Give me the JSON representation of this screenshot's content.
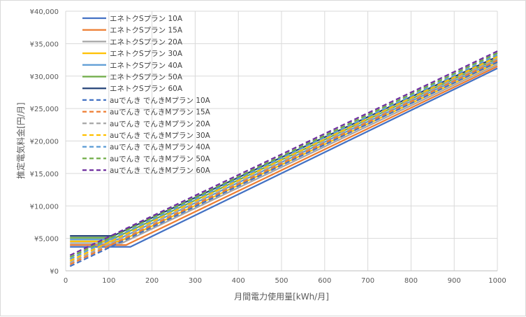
{
  "chart_data": {
    "type": "line",
    "xlabel": "月間電力使用量[kWh/月]",
    "ylabel": "推定電気料金[円/月]",
    "xlim": [
      0,
      1000
    ],
    "ylim": [
      0,
      40000
    ],
    "x_ticks": [
      "0",
      "100",
      "200",
      "300",
      "400",
      "500",
      "600",
      "700",
      "800",
      "900",
      "1000"
    ],
    "y_ticks": [
      "¥0",
      "¥5,000",
      "¥10,000",
      "¥15,000",
      "¥20,000",
      "¥25,000",
      "¥30,000",
      "¥35,000",
      "¥40,000"
    ],
    "grid": true,
    "legend_position": "top-left",
    "series": [
      {
        "name": "エネトクSプラン 10A",
        "color": "#4472c4",
        "dash": false,
        "points": [
          [
            10,
            3700
          ],
          [
            150,
            3700
          ],
          [
            1000,
            31200
          ]
        ]
      },
      {
        "name": "エネトクSプラン 15A",
        "color": "#ed7d31",
        "dash": false,
        "points": [
          [
            10,
            3980
          ],
          [
            140,
            3980
          ],
          [
            1000,
            31500
          ]
        ]
      },
      {
        "name": "エネトクSプラン 20A",
        "color": "#a5a5a5",
        "dash": false,
        "points": [
          [
            10,
            4260
          ],
          [
            130,
            4260
          ],
          [
            1000,
            31800
          ]
        ]
      },
      {
        "name": "エネトクSプラン 30A",
        "color": "#ffc000",
        "dash": false,
        "points": [
          [
            10,
            4540
          ],
          [
            125,
            4540
          ],
          [
            1000,
            32100
          ]
        ]
      },
      {
        "name": "エネトクSプラン 40A",
        "color": "#5b9bd5",
        "dash": false,
        "points": [
          [
            10,
            4820
          ],
          [
            120,
            4820
          ],
          [
            1000,
            32400
          ]
        ]
      },
      {
        "name": "エネトクSプラン 50A",
        "color": "#70ad47",
        "dash": false,
        "points": [
          [
            10,
            5100
          ],
          [
            115,
            5100
          ],
          [
            1000,
            32700
          ]
        ]
      },
      {
        "name": "エネトクSプラン 60A",
        "color": "#264478",
        "dash": false,
        "points": [
          [
            10,
            5380
          ],
          [
            110,
            5380
          ],
          [
            1000,
            33000
          ]
        ]
      },
      {
        "name": "auでんき でんきMプラン 10A",
        "color": "#4472c4",
        "dash": true,
        "points": [
          [
            10,
            700
          ],
          [
            1000,
            32150
          ]
        ]
      },
      {
        "name": "auでんき でんきMプラン 15A",
        "color": "#ed7d31",
        "dash": true,
        "points": [
          [
            10,
            980
          ],
          [
            1000,
            32430
          ]
        ]
      },
      {
        "name": "auでんき でんきMプラン 20A",
        "color": "#a5a5a5",
        "dash": true,
        "points": [
          [
            10,
            1260
          ],
          [
            1000,
            32710
          ]
        ]
      },
      {
        "name": "auでんき でんきMプラン 30A",
        "color": "#ffc000",
        "dash": true,
        "points": [
          [
            10,
            1540
          ],
          [
            1000,
            32990
          ]
        ]
      },
      {
        "name": "auでんき でんきMプラン 40A",
        "color": "#5b9bd5",
        "dash": true,
        "points": [
          [
            10,
            1820
          ],
          [
            1000,
            33270
          ]
        ]
      },
      {
        "name": "auでんき でんきMプラン 50A",
        "color": "#70ad47",
        "dash": true,
        "points": [
          [
            10,
            2100
          ],
          [
            1000,
            33550
          ]
        ]
      },
      {
        "name": "auでんき でんきMプラン 60A",
        "color": "#7030a0",
        "dash": true,
        "points": [
          [
            10,
            2380
          ],
          [
            1000,
            33830
          ]
        ]
      }
    ]
  }
}
